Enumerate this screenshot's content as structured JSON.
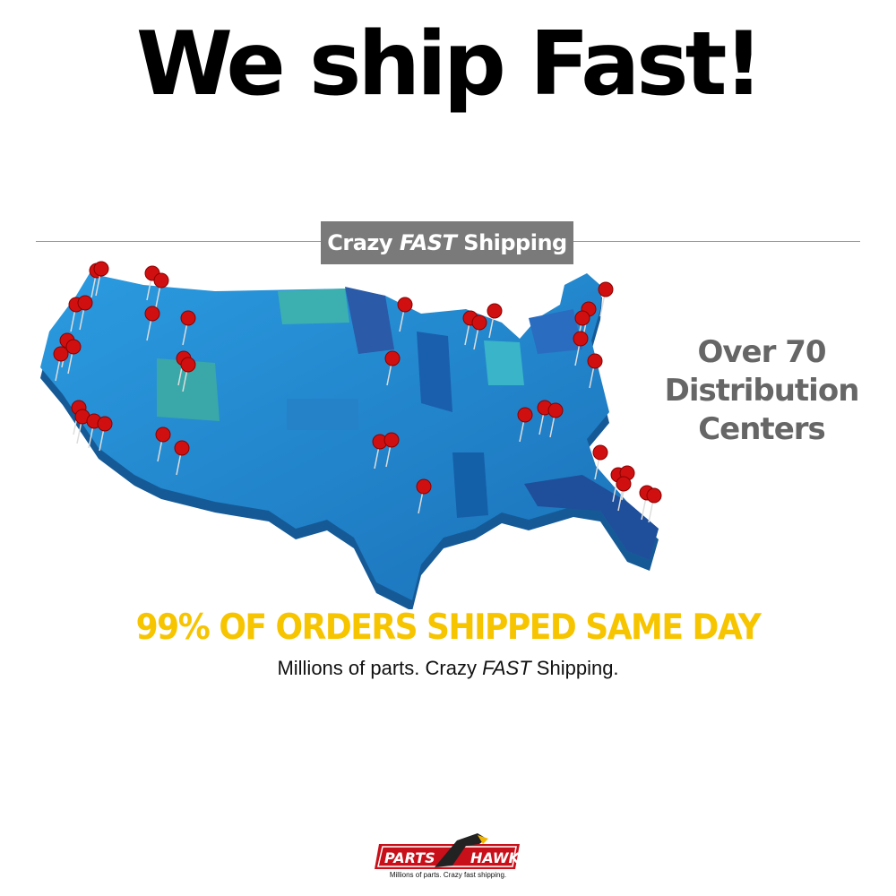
{
  "title": "We ship Fast!",
  "badge": {
    "prefix": "Crazy",
    "emphasis": "FAST",
    "suffix": "Shipping"
  },
  "side_text": {
    "line1": "Over 70",
    "line2": "Distribution",
    "line3": "Centers"
  },
  "headline": "99% OF ORDERS SHIPPED SAME DAY",
  "subline": {
    "prefix": "Millions of parts. Crazy",
    "emphasis": "FAST",
    "suffix": "Shipping."
  },
  "logo": {
    "word1": "PARTS",
    "word2": "HAWK",
    "tagline": "Millions of parts. Crazy fast shipping."
  },
  "colors": {
    "pin": "#d01010",
    "map": "#1e88d0",
    "headline": "#f7c400",
    "badge": "#7a7a7a"
  }
}
